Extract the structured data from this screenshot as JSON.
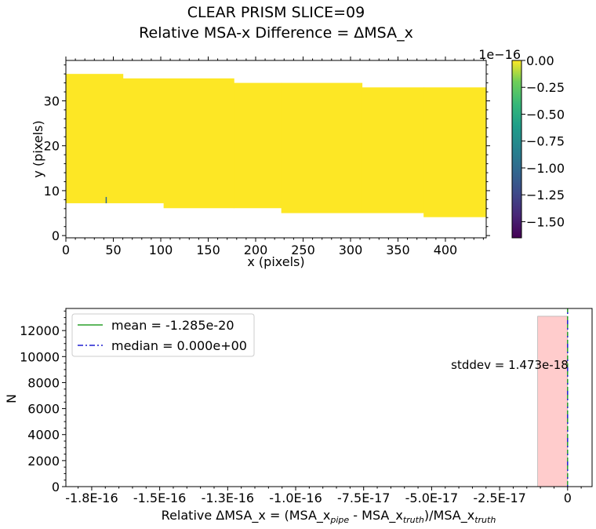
{
  "title": {
    "line1": "CLEAR   PRISM   SLICE=09",
    "line2": "Relative MSA-x Difference = ΔMSA_x"
  },
  "chart_data": [
    {
      "type": "heatmap",
      "xlabel": "x (pixels)",
      "ylabel": "y (pixels)",
      "xlim": [
        0,
        443
      ],
      "ylim": [
        -0.5,
        39
      ],
      "xticks": [
        "0",
        "50",
        "100",
        "150",
        "200",
        "250",
        "300",
        "350",
        "400"
      ],
      "yticks": [
        "0",
        "10",
        "20",
        "30"
      ],
      "fill_color": "#fde725",
      "colorbar": {
        "offset_label": "1e−16",
        "range": [
          -1.65,
          0.0
        ],
        "ticks": [
          "0.00",
          "−0.25",
          "−0.50",
          "−0.75",
          "−1.00",
          "−1.25",
          "−1.50"
        ],
        "colormap": "viridis"
      },
      "segments": [
        {
          "x0": 0,
          "x1": 60,
          "y0": 7.2,
          "y1": 36.0
        },
        {
          "x0": 60,
          "x1": 103,
          "y0": 7.2,
          "y1": 35.0
        },
        {
          "x0": 103,
          "x1": 177,
          "y0": 6.1,
          "y1": 35.0
        },
        {
          "x0": 177,
          "x1": 227,
          "y0": 6.1,
          "y1": 34.0
        },
        {
          "x0": 227,
          "x1": 312,
          "y0": 5.0,
          "y1": 34.0
        },
        {
          "x0": 312,
          "x1": 377,
          "y0": 5.0,
          "y1": 33.0
        },
        {
          "x0": 377,
          "x1": 443,
          "y0": 4.1,
          "y1": 33.0
        }
      ],
      "outlier_marks": [
        {
          "x": 42.5,
          "y0": 7.2,
          "y1": 8.6,
          "color": "#31688e"
        }
      ]
    },
    {
      "type": "bar",
      "xlabel_parts": {
        "main": "Relative ΔMSA_x = (MSA_x",
        "sub1": "pipe",
        "mid": " - MSA_x",
        "sub2": "truth",
        "tail": ")/MSA_x",
        "sub3": "truth"
      },
      "ylabel": "N",
      "xlim": [
        -1.845e-16,
        9e-18
      ],
      "ylim": [
        0,
        13700
      ],
      "xticks": [
        {
          "value": -1.75e-16,
          "label": "-1.8E-16"
        },
        {
          "value": -1.5e-16,
          "label": "-1.5E-16"
        },
        {
          "value": -1.25e-16,
          "label": "-1.3E-16"
        },
        {
          "value": -1e-16,
          "label": "-1.0E-16"
        },
        {
          "value": -7.5e-17,
          "label": "-7.5E-17"
        },
        {
          "value": -5e-17,
          "label": "-5.0E-17"
        },
        {
          "value": -2.5e-17,
          "label": "-2.5E-17"
        },
        {
          "value": 0,
          "label": "0"
        }
      ],
      "yticks": [
        0,
        2000,
        4000,
        6000,
        8000,
        10000,
        12000
      ],
      "bars": [
        {
          "x0": -1.1e-17,
          "x1": 0,
          "count": 13100,
          "color": "#ffcccc"
        }
      ],
      "mean_line": {
        "value": -1.285e-20,
        "color": "#2ca02c"
      },
      "median_line": {
        "value": 0.0,
        "color": "#1f1fd0"
      },
      "legend": {
        "placement": "top-left",
        "entries": [
          "mean = -1.285e-20",
          "median = 0.000e+00"
        ]
      },
      "annotation": {
        "text": "stddev = 1.473e-18",
        "x": 0,
        "y": 9300
      }
    }
  ]
}
